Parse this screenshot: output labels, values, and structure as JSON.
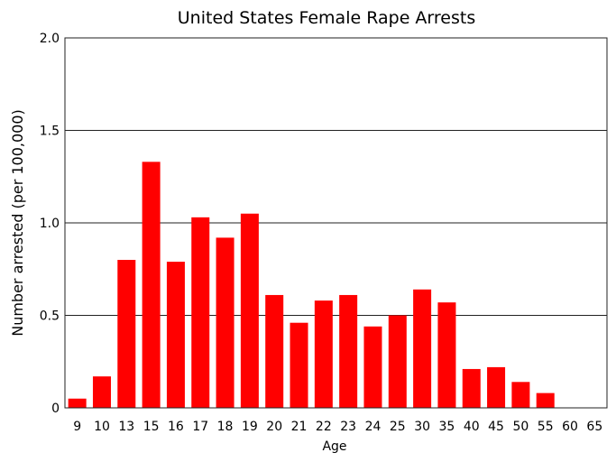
{
  "chart_data": {
    "type": "bar",
    "title": "United States Female Rape Arrests",
    "xlabel": "Age",
    "ylabel": "Number arrested (per 100,000)",
    "categories": [
      "9",
      "10",
      "13",
      "15",
      "16",
      "17",
      "18",
      "19",
      "20",
      "21",
      "22",
      "23",
      "24",
      "25",
      "30",
      "35",
      "40",
      "45",
      "50",
      "55",
      "60",
      "65"
    ],
    "values": [
      0.05,
      0.17,
      0.8,
      1.33,
      0.79,
      1.03,
      0.92,
      1.05,
      0.61,
      0.46,
      0.58,
      0.61,
      0.44,
      0.5,
      0.64,
      0.57,
      0.21,
      0.22,
      0.14,
      0.08,
      0,
      0
    ],
    "ylim": [
      0,
      2.0
    ],
    "yticks": [
      0,
      0.5,
      1.0,
      1.5,
      2.0
    ],
    "ytick_labels": [
      "0",
      "0.5",
      "1.0",
      "1.5",
      "2.0"
    ],
    "grid": "horizontal",
    "bar_color": "#ff0000"
  }
}
